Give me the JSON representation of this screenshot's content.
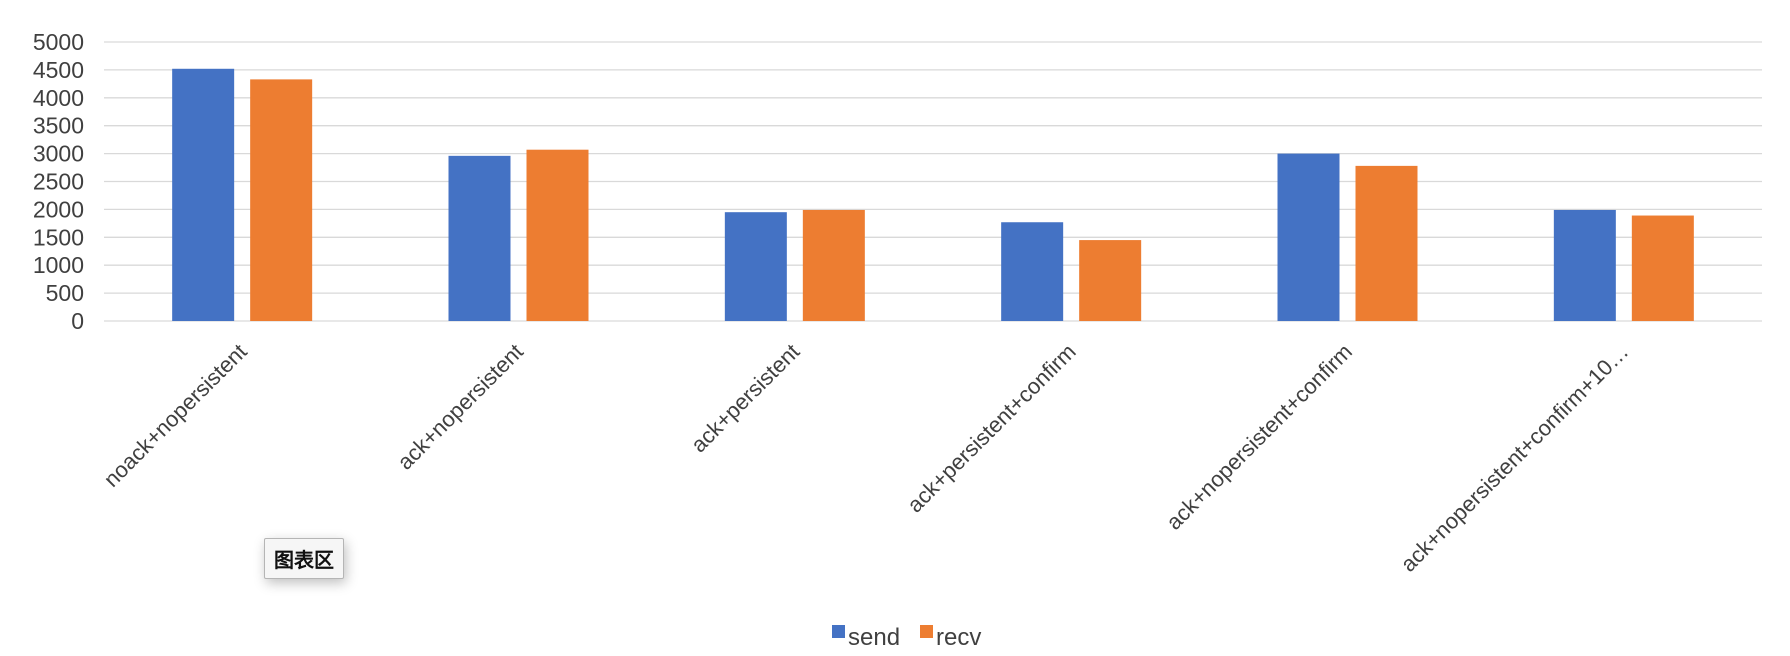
{
  "chart_data": {
    "type": "bar",
    "categories": [
      "noack+nopersistent",
      "ack+nopersistent",
      "ack+persistent",
      "ack+persistent+confirm",
      "ack+nopersistent+confirm",
      "ack+nopersistent+confirm+10…"
    ],
    "series": [
      {
        "name": "send",
        "color": "#4472C4",
        "values": [
          4520,
          2960,
          1950,
          1770,
          3000,
          1990
        ]
      },
      {
        "name": "recv",
        "color": "#ED7D31",
        "values": [
          4330,
          3070,
          1990,
          1450,
          2780,
          1890
        ]
      }
    ],
    "ylim": [
      0,
      5000
    ],
    "yticks": [
      "0",
      "500",
      "1000",
      "1500",
      "2000",
      "2500",
      "3000",
      "3500",
      "4000",
      "4500",
      "5000"
    ],
    "grid": true,
    "legend_position": "bottom"
  },
  "tooltip_label": "图表区",
  "colors": {
    "grid": "#d9d9d9",
    "text": "#404040"
  }
}
